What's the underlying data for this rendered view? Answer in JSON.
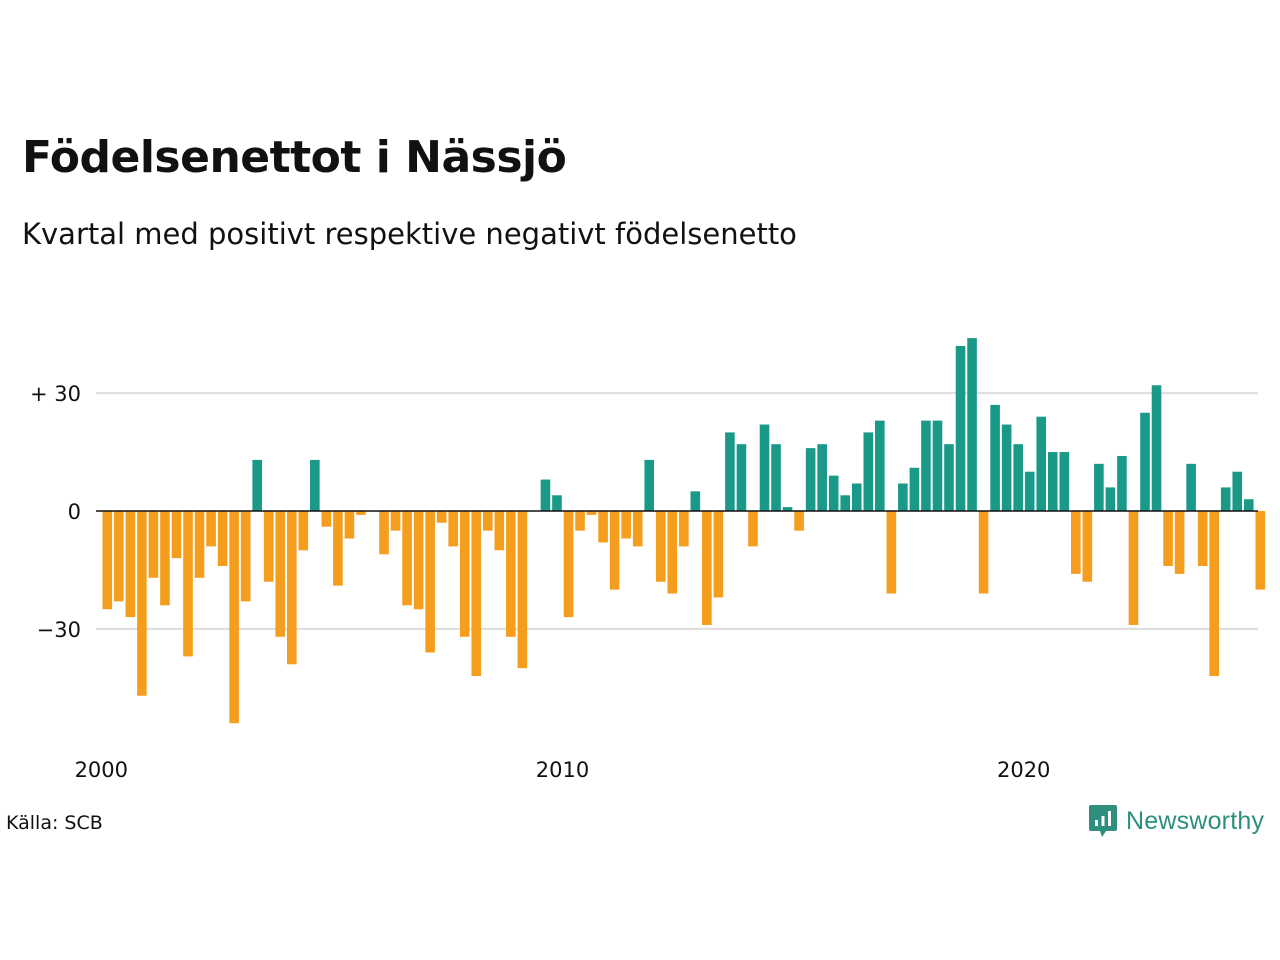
{
  "header": {
    "title": "Födelsenettot i Nässjö",
    "subtitle": "Kvartal med positivt respektive negativt födelsenetto"
  },
  "footer": {
    "source": "Källa: SCB",
    "brand": "Newsworthy",
    "brand_icon": "newsworthy-logo-icon"
  },
  "colors": {
    "positive": "#1a9988",
    "negative": "#f59d1c",
    "grid": "#dddddd",
    "zero_line": "#111111",
    "brand": "#2e8f7f"
  },
  "chart_data": {
    "type": "bar",
    "x_start": "2000",
    "x_step": "quarter",
    "xticks": [
      {
        "label": "2000",
        "index": 0
      },
      {
        "label": "2010",
        "index": 40
      },
      {
        "label": "2020",
        "index": 80
      }
    ],
    "yticks": [
      {
        "label": "+ 30",
        "value": 30
      },
      {
        "label": "0",
        "value": 0
      },
      {
        "label": "−30",
        "value": -30
      }
    ],
    "ylim": [
      -55,
      45
    ],
    "grid": true,
    "values": [
      -25,
      -23,
      -27,
      -47,
      -17,
      -24,
      -12,
      -37,
      -17,
      -9,
      -14,
      -54,
      -23,
      13,
      -18,
      -32,
      -39,
      -10,
      13,
      -4,
      -19,
      -7,
      -1,
      0,
      -11,
      -5,
      -24,
      -25,
      -36,
      -3,
      -9,
      -32,
      -42,
      -5,
      -10,
      -32,
      -40,
      0,
      8,
      4,
      -27,
      -5,
      -1,
      -8,
      -20,
      -7,
      -9,
      13,
      -18,
      -21,
      -9,
      5,
      -29,
      -22,
      20,
      17,
      -9,
      22,
      17,
      1,
      -5,
      16,
      17,
      9,
      4,
      7,
      20,
      23,
      -21,
      7,
      11,
      23,
      23,
      17,
      42,
      44,
      -21,
      27,
      22,
      17,
      10,
      24,
      15,
      15,
      -16,
      -18,
      12,
      6,
      14,
      -29,
      25,
      32,
      -14,
      -16,
      12,
      -14,
      -42,
      6,
      10,
      3,
      -20
    ]
  }
}
